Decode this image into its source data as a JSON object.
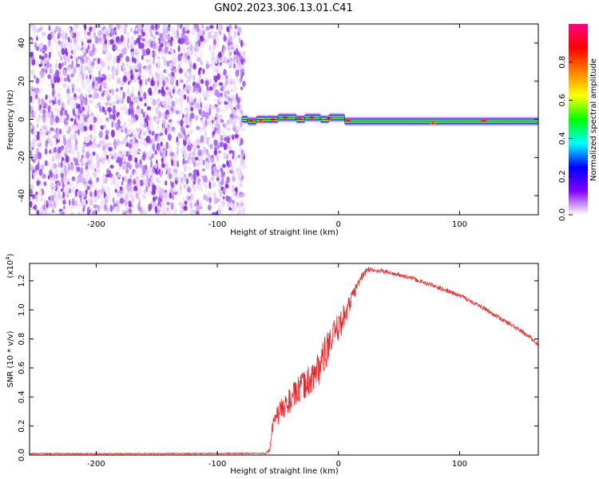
{
  "title": "GN02.2023.306.13.01.C41",
  "chart_data": [
    {
      "type": "heatmap",
      "xlabel": "Height of straight line (km)",
      "ylabel": "Frequency (Hz)",
      "xlim": [
        -255,
        165
      ],
      "ylim": [
        -50,
        50
      ],
      "xticks": [
        -200,
        -100,
        0,
        100
      ],
      "yticks": [
        -40,
        -20,
        0,
        20,
        40
      ],
      "grid": false,
      "noise_region": {
        "x_range": [
          -255,
          -78
        ],
        "y_range": [
          -50,
          50
        ],
        "level": "low-to-medium"
      },
      "signal_band": {
        "x_range": [
          -80,
          165
        ],
        "center_freq_segments": [
          {
            "x": [
              -80,
              -75
            ],
            "freq": 0
          },
          {
            "x": [
              -75,
              -68
            ],
            "freq": -1
          },
          {
            "x": [
              -68,
              -60
            ],
            "freq": 0
          },
          {
            "x": [
              -60,
              -50
            ],
            "freq": 0
          },
          {
            "x": [
              -50,
              -35
            ],
            "freq": 1
          },
          {
            "x": [
              -35,
              -28
            ],
            "freq": 0
          },
          {
            "x": [
              -28,
              -15
            ],
            "freq": 1
          },
          {
            "x": [
              -15,
              -8
            ],
            "freq": 0
          },
          {
            "x": [
              -8,
              5
            ],
            "freq": 1
          },
          {
            "x": [
              5,
              165
            ],
            "freq": -1
          }
        ],
        "bandwidth_hz": 5
      },
      "colorbar": {
        "label": "Normalized spectral amplitude",
        "range": [
          0,
          1
        ],
        "ticks": [
          "0.0",
          "0.2",
          "0.4",
          "0.6",
          "0.8"
        ],
        "colors": [
          "#ffffff",
          "#8000ff",
          "#0000ff",
          "#00ffff",
          "#00ff00",
          "#ffff00",
          "#ff8000",
          "#ff0000",
          "#ff0080"
        ]
      }
    },
    {
      "type": "line",
      "xlabel": "Height of straight line (km)",
      "ylabel": "SNR (10 * v/v)",
      "y_multiplier": "(x10^4)",
      "y_multiplier_base": "(x10",
      "y_multiplier_exp": "4",
      "xlim": [
        -255,
        165
      ],
      "ylim": [
        0,
        1.32
      ],
      "xticks": [
        -200,
        -100,
        0,
        100
      ],
      "yticks": [
        "0.0",
        "0.2",
        "0.4",
        "0.6",
        "0.8",
        "1.0",
        "1.2"
      ],
      "grid": false,
      "series": [
        {
          "color": "#e8282b",
          "x": [
            -255,
            -150,
            -60,
            -57,
            -55,
            -50,
            -45,
            -40,
            -35,
            -30,
            -25,
            -20,
            -15,
            -10,
            -5,
            0,
            5,
            10,
            15,
            20,
            25,
            30,
            35,
            40,
            50,
            60,
            70,
            80,
            90,
            100,
            110,
            120,
            130,
            140,
            150,
            160,
            165
          ],
          "y": [
            0.01,
            0.01,
            0.012,
            0.03,
            0.17,
            0.28,
            0.33,
            0.38,
            0.43,
            0.47,
            0.51,
            0.55,
            0.62,
            0.72,
            0.8,
            0.88,
            0.96,
            1.06,
            1.16,
            1.24,
            1.28,
            1.27,
            1.27,
            1.26,
            1.24,
            1.22,
            1.19,
            1.16,
            1.13,
            1.1,
            1.06,
            1.01,
            0.96,
            0.91,
            0.86,
            0.8,
            0.76
          ],
          "noise": [
            0.004,
            0.004,
            0.004,
            0.02,
            0.06,
            0.08,
            0.08,
            0.09,
            0.09,
            0.1,
            0.11,
            0.12,
            0.13,
            0.12,
            0.11,
            0.1,
            0.09,
            0.06,
            0.04,
            0.03,
            0.02,
            0.015,
            0.015,
            0.015,
            0.015,
            0.015,
            0.015,
            0.015,
            0.015,
            0.015,
            0.015,
            0.015,
            0.015,
            0.015,
            0.015,
            0.015,
            0.015
          ]
        }
      ]
    }
  ]
}
